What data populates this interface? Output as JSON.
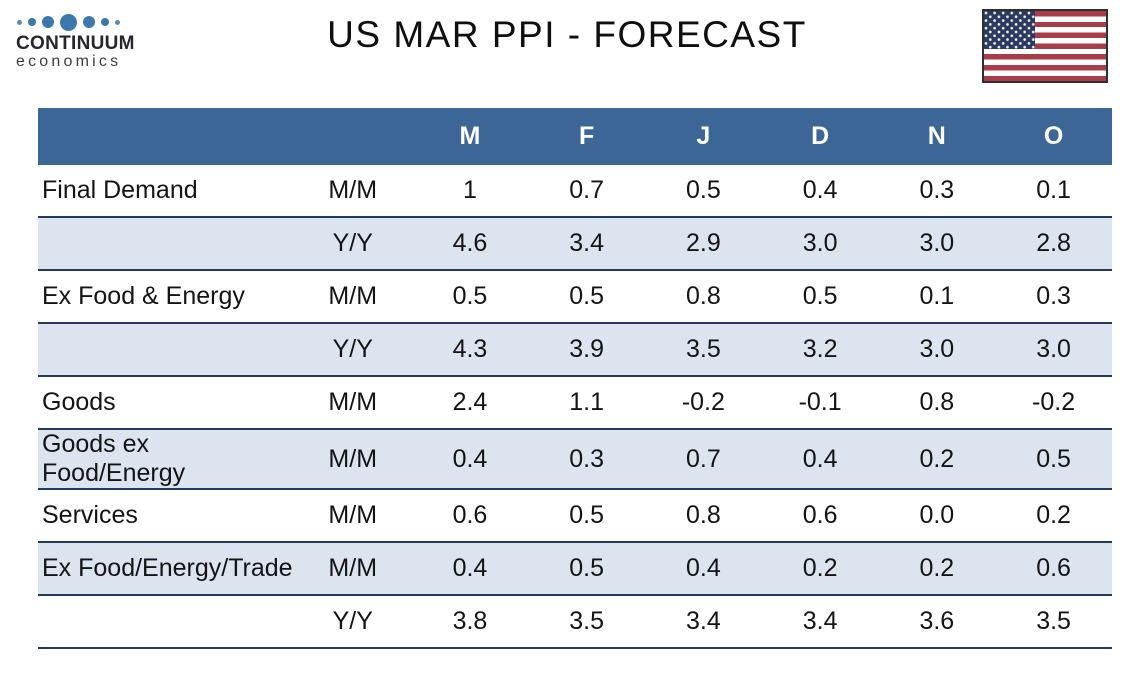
{
  "header": {
    "logo": {
      "line1": "CONTINUUM",
      "line2": "economics"
    },
    "title": "US MAR PPI - FORECAST"
  },
  "colors": {
    "table_header_bg": "#3b6695",
    "alt_row_bg": "#dbe4ef",
    "row_border": "#24395c",
    "logo_dot": "#3a78ad",
    "flag_red": "#a93c49",
    "flag_navy": "#2c3a5f"
  },
  "chart_data": {
    "type": "table",
    "title": "US MAR PPI - FORECAST",
    "column_headers": [
      "M",
      "F",
      "J",
      "D",
      "N",
      "O"
    ],
    "rows": [
      {
        "label": "Final Demand",
        "measure": "M/M",
        "values": [
          "1",
          "0.7",
          "0.5",
          "0.4",
          "0.3",
          "0.1"
        ]
      },
      {
        "label": "",
        "measure": "Y/Y",
        "values": [
          "4.6",
          "3.4",
          "2.9",
          "3.0",
          "3.0",
          "2.8"
        ]
      },
      {
        "label": "Ex Food & Energy",
        "measure": "M/M",
        "values": [
          "0.5",
          "0.5",
          "0.8",
          "0.5",
          "0.1",
          "0.3"
        ]
      },
      {
        "label": "",
        "measure": "Y/Y",
        "values": [
          "4.3",
          "3.9",
          "3.5",
          "3.2",
          "3.0",
          "3.0"
        ]
      },
      {
        "label": "Goods",
        "measure": "M/M",
        "values": [
          "2.4",
          "1.1",
          "-0.2",
          "-0.1",
          "0.8",
          "-0.2"
        ]
      },
      {
        "label": "Goods ex Food/Energy",
        "measure": "M/M",
        "values": [
          "0.4",
          "0.3",
          "0.7",
          "0.4",
          "0.2",
          "0.5"
        ]
      },
      {
        "label": "Services",
        "measure": "M/M",
        "values": [
          "0.6",
          "0.5",
          "0.8",
          "0.6",
          "0.0",
          "0.2"
        ]
      },
      {
        "label": "Ex Food/Energy/Trade",
        "measure": "M/M",
        "values": [
          "0.4",
          "0.5",
          "0.4",
          "0.2",
          "0.2",
          "0.6"
        ]
      },
      {
        "label": "",
        "measure": "Y/Y",
        "values": [
          "3.8",
          "3.5",
          "3.4",
          "3.4",
          "3.6",
          "3.5"
        ]
      }
    ]
  }
}
